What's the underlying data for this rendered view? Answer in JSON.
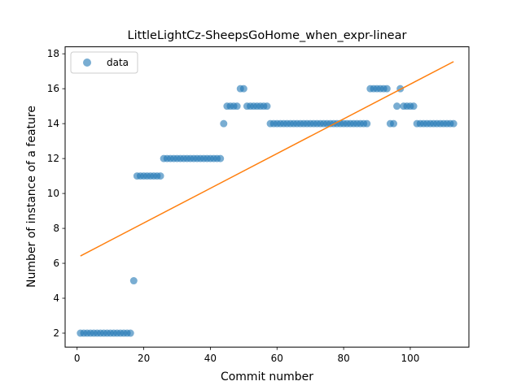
{
  "chart_data": {
    "type": "scatter",
    "title": "LittleLightCz-SheepsGoHome_when_expr-linear",
    "xlabel": "Commit number",
    "ylabel": "Number of instance of a feature",
    "xlim": [
      -3.6,
      117.6
    ],
    "ylim": [
      1.2,
      18.4
    ],
    "xticks": [
      0,
      20,
      40,
      60,
      80,
      100
    ],
    "yticks": [
      2,
      4,
      6,
      8,
      10,
      12,
      14,
      16,
      18
    ],
    "grid": false,
    "legend_position": "top-left",
    "series": [
      {
        "name": "data",
        "kind": "scatter",
        "color": "#1f77b4",
        "x": [
          1,
          2,
          3,
          4,
          5,
          6,
          7,
          8,
          9,
          10,
          11,
          12,
          13,
          14,
          15,
          16,
          17,
          18,
          19,
          20,
          21,
          22,
          23,
          24,
          25,
          26,
          27,
          28,
          29,
          30,
          31,
          32,
          33,
          34,
          35,
          36,
          37,
          38,
          39,
          40,
          41,
          42,
          43,
          44,
          45,
          46,
          47,
          48,
          49,
          50,
          51,
          52,
          53,
          54,
          55,
          56,
          57,
          58,
          59,
          60,
          61,
          62,
          63,
          64,
          65,
          66,
          67,
          68,
          69,
          70,
          71,
          72,
          73,
          74,
          75,
          76,
          77,
          78,
          79,
          80,
          81,
          82,
          83,
          84,
          85,
          86,
          87,
          88,
          89,
          90,
          91,
          92,
          93,
          94,
          95,
          96,
          97,
          98,
          99,
          100,
          101,
          102,
          103,
          104,
          105,
          106,
          107,
          108,
          109,
          110,
          111,
          112,
          113
        ],
        "y": [
          2,
          2,
          2,
          2,
          2,
          2,
          2,
          2,
          2,
          2,
          2,
          2,
          2,
          2,
          2,
          2,
          5,
          11,
          11,
          11,
          11,
          11,
          11,
          11,
          11,
          12,
          12,
          12,
          12,
          12,
          12,
          12,
          12,
          12,
          12,
          12,
          12,
          12,
          12,
          12,
          12,
          12,
          12,
          14,
          15,
          15,
          15,
          15,
          16,
          16,
          15,
          15,
          15,
          15,
          15,
          15,
          15,
          14,
          14,
          14,
          14,
          14,
          14,
          14,
          14,
          14,
          14,
          14,
          14,
          14,
          14,
          14,
          14,
          14,
          14,
          14,
          14,
          14,
          14,
          14,
          14,
          14,
          14,
          14,
          14,
          14,
          14,
          16,
          16,
          16,
          16,
          16,
          16,
          14,
          14,
          15,
          16,
          15,
          15,
          15,
          15,
          14,
          14,
          14,
          14,
          14,
          14,
          14,
          14,
          14,
          14,
          14,
          14
        ]
      },
      {
        "kind": "line",
        "color": "#ff7f0e",
        "x": [
          1,
          113
        ],
        "y": [
          6.42,
          17.55
        ]
      }
    ]
  }
}
